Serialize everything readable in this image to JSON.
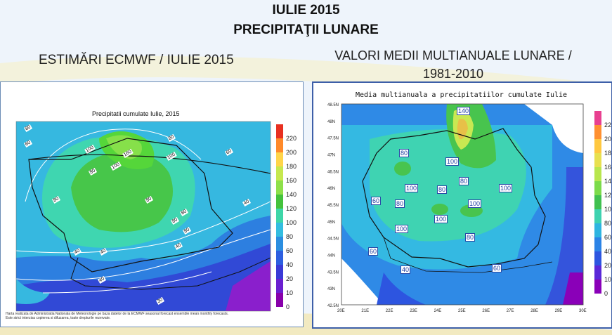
{
  "header": {
    "line1": "IULIE 2015",
    "line2": "PRECIPITAŢII LUNARE"
  },
  "left": {
    "subtitle": "ESTIMĂRI ECMWF / IULIE 2015",
    "map_title": "Precipitatii cumulate Iulie, 2015",
    "footnote_l1": "Harta realizata de Administratia Nationala de Meteorologie pe baza datelor de la ECMWF seasonal forecast ensemble mean monthly forecasts.",
    "footnote_l2": "Este strict interzisa copierea si difuzarea, toate drepturile rezervate.",
    "colorbar_ticks": [
      "0",
      "10",
      "20",
      "40",
      "60",
      "80",
      "100",
      "120",
      "140",
      "160",
      "180",
      "200",
      "220"
    ],
    "colorbar_colors": [
      "#8800aa",
      "#6b1fd0",
      "#3a3ad6",
      "#2d5fe0",
      "#2b8ee0",
      "#33bde0",
      "#3ed6a8",
      "#44c23c",
      "#8ee04a",
      "#c6e84e",
      "#ffd54a",
      "#ff8a2a",
      "#e83020"
    ],
    "isolines": [
      "80",
      "60",
      "40",
      "40",
      "80",
      "100",
      "80",
      "100",
      "160",
      "100",
      "80",
      "80",
      "80",
      "60",
      "40",
      "40",
      "40",
      "30",
      "80",
      "80"
    ]
  },
  "right": {
    "subtitle_l1": "VALORI MEDII MULTIANUALE LUNARE /",
    "subtitle_l2": "1981-2010",
    "map_title": "Media multianuala a precipitatiilor cumulate Iulie",
    "lat_ticks": [
      "48N",
      "47.5N",
      "47N",
      "46.5N",
      "46N",
      "45.5N",
      "45N",
      "44.5N",
      "44N",
      "43.5N",
      "43N",
      "42.5N",
      "48.5N"
    ],
    "lon_ticks": [
      "20E",
      "21E",
      "22E",
      "23E",
      "24E",
      "25E",
      "26E",
      "27E",
      "28E",
      "29E",
      "30E"
    ],
    "colorbar_ticks": [
      "0",
      "10",
      "20",
      "40",
      "60",
      "80",
      "100",
      "120",
      "140",
      "160",
      "180",
      "200",
      "220"
    ],
    "colorbar_colors": [
      "#8a00b8",
      "#5a28d8",
      "#2d55e0",
      "#2b83e6",
      "#2eb4e0",
      "#3ed2b0",
      "#40c050",
      "#7cdb4a",
      "#b8e64e",
      "#e8e050",
      "#ffc840",
      "#ff9030",
      "#e84090"
    ],
    "isolines": [
      "140",
      "80",
      "100",
      "100",
      "80",
      "80",
      "100",
      "60",
      "80",
      "100",
      "100",
      "100",
      "80",
      "60",
      "40",
      "60"
    ]
  }
}
